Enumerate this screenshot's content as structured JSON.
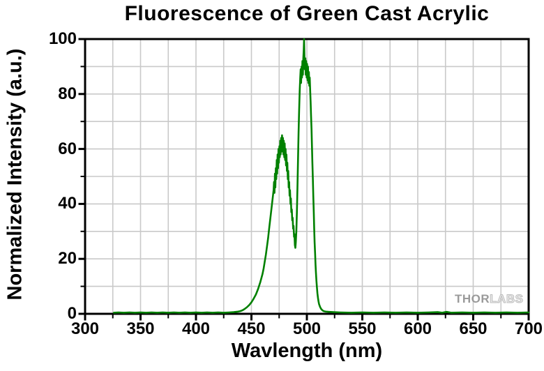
{
  "figure": {
    "watermark": {
      "thor": "THOR",
      "labs": "LABS"
    }
  },
  "chart_data": {
    "type": "line",
    "title": "Fluorescence of Green Cast Acrylic",
    "xlabel": "Wavlength (nm)",
    "ylabel": "Normalized Intensity (a.u.)",
    "xlim": [
      300,
      700
    ],
    "ylim": [
      0,
      100
    ],
    "x_major_ticks": [
      300,
      350,
      400,
      450,
      500,
      550,
      600,
      650,
      700
    ],
    "x_minor_ticks": [
      325,
      375,
      425,
      475,
      525,
      575,
      625,
      675
    ],
    "y_major_ticks": [
      0,
      20,
      40,
      60,
      80,
      100
    ],
    "y_minor_ticks": [
      10,
      30,
      50,
      70,
      90
    ],
    "grid": {
      "show": true,
      "x_gridlines": [
        325,
        350,
        375,
        400,
        425,
        450,
        475,
        500,
        525,
        550,
        575,
        600,
        625,
        650,
        675
      ],
      "y_gridlines": [
        10,
        20,
        30,
        40,
        50,
        60,
        70,
        80,
        90
      ],
      "color": "#c9c9c9"
    },
    "frame_color": "#000000",
    "line_color": "#008000",
    "legend": {
      "show": false
    },
    "annotations": [
      "THORLABS watermark bottom-right"
    ],
    "series": [
      {
        "name": "Green Cast Acrylic fluorescence",
        "peak1": {
          "wavelength_nm": 478,
          "intensity": 65
        },
        "valley": {
          "wavelength_nm": 489.5,
          "intensity": 24
        },
        "peak2": {
          "wavelength_nm": 497.5,
          "intensity": 100
        },
        "points": [
          [
            326,
            0.4
          ],
          [
            330,
            0.5
          ],
          [
            335,
            0.4
          ],
          [
            340,
            0.5
          ],
          [
            345,
            0.4
          ],
          [
            350,
            0.5
          ],
          [
            355,
            0.4
          ],
          [
            360,
            0.5
          ],
          [
            365,
            0.4
          ],
          [
            370,
            0.5
          ],
          [
            375,
            0.4
          ],
          [
            380,
            0.5
          ],
          [
            385,
            0.4
          ],
          [
            390,
            0.5
          ],
          [
            395,
            0.4
          ],
          [
            400,
            0.5
          ],
          [
            405,
            0.4
          ],
          [
            410,
            0.5
          ],
          [
            415,
            0.4
          ],
          [
            420,
            0.5
          ],
          [
            425,
            0.4
          ],
          [
            430,
            0.5
          ],
          [
            434,
            0.6
          ],
          [
            438,
            0.8
          ],
          [
            440,
            1
          ],
          [
            442,
            1.3
          ],
          [
            444,
            1.8
          ],
          [
            446,
            2.4
          ],
          [
            448,
            3.2
          ],
          [
            450,
            4.2
          ],
          [
            452,
            5.5
          ],
          [
            454,
            7
          ],
          [
            456,
            9
          ],
          [
            458,
            11.5
          ],
          [
            460,
            14.5
          ],
          [
            461,
            16.5
          ],
          [
            462,
            19
          ],
          [
            463,
            21.5
          ],
          [
            464,
            24.5
          ],
          [
            465,
            27.5
          ],
          [
            466,
            31
          ],
          [
            467,
            34.5
          ],
          [
            468,
            38
          ],
          [
            469,
            41.5
          ],
          [
            470,
            45
          ],
          [
            470.4,
            48
          ],
          [
            470.8,
            44
          ],
          [
            471.2,
            51
          ],
          [
            471.6,
            46
          ],
          [
            472,
            53
          ],
          [
            472.4,
            49
          ],
          [
            472.8,
            56
          ],
          [
            473.2,
            51
          ],
          [
            473.6,
            58
          ],
          [
            474,
            53
          ],
          [
            474.4,
            60
          ],
          [
            474.8,
            55
          ],
          [
            475.2,
            61
          ],
          [
            475.6,
            57
          ],
          [
            476,
            63
          ],
          [
            476.4,
            58
          ],
          [
            476.8,
            64
          ],
          [
            477.2,
            59
          ],
          [
            477.6,
            65
          ],
          [
            478,
            60
          ],
          [
            478.4,
            64
          ],
          [
            478.8,
            58
          ],
          [
            479.2,
            63
          ],
          [
            479.6,
            57
          ],
          [
            480,
            62
          ],
          [
            480.4,
            56
          ],
          [
            480.8,
            60
          ],
          [
            481.2,
            54
          ],
          [
            481.6,
            58
          ],
          [
            482,
            52
          ],
          [
            482.4,
            55
          ],
          [
            482.8,
            49
          ],
          [
            483.2,
            52
          ],
          [
            483.6,
            46
          ],
          [
            484,
            48
          ],
          [
            484.4,
            43
          ],
          [
            484.8,
            45
          ],
          [
            485.2,
            40
          ],
          [
            485.6,
            42
          ],
          [
            486,
            37
          ],
          [
            486.4,
            38
          ],
          [
            486.8,
            34
          ],
          [
            487.2,
            35
          ],
          [
            487.6,
            31
          ],
          [
            488,
            32
          ],
          [
            488.4,
            28
          ],
          [
            488.8,
            29
          ],
          [
            489.2,
            25
          ],
          [
            489.6,
            24
          ],
          [
            490,
            26
          ],
          [
            490.5,
            30
          ],
          [
            491,
            37
          ],
          [
            491.5,
            46
          ],
          [
            492,
            56
          ],
          [
            492.5,
            66
          ],
          [
            493,
            74
          ],
          [
            493.5,
            81
          ],
          [
            494,
            86
          ],
          [
            494.4,
            89
          ],
          [
            494.8,
            84
          ],
          [
            495.2,
            90
          ],
          [
            495.6,
            86
          ],
          [
            496,
            92
          ],
          [
            496.4,
            87
          ],
          [
            496.8,
            93
          ],
          [
            497.2,
            96
          ],
          [
            497.5,
            100
          ],
          [
            497.8,
            94
          ],
          [
            498.2,
            89
          ],
          [
            498.6,
            93
          ],
          [
            499,
            87
          ],
          [
            499.4,
            92
          ],
          [
            499.8,
            86
          ],
          [
            500.2,
            91
          ],
          [
            500.6,
            85
          ],
          [
            501,
            90
          ],
          [
            501.4,
            84
          ],
          [
            501.8,
            88
          ],
          [
            502.2,
            83
          ],
          [
            502.6,
            86
          ],
          [
            503,
            81
          ],
          [
            503.4,
            77
          ],
          [
            503.8,
            72
          ],
          [
            504.2,
            67
          ],
          [
            504.6,
            61
          ],
          [
            505,
            55
          ],
          [
            505.4,
            49
          ],
          [
            505.8,
            43
          ],
          [
            506.2,
            37
          ],
          [
            506.6,
            31
          ],
          [
            507,
            26
          ],
          [
            507.4,
            22
          ],
          [
            507.8,
            18
          ],
          [
            508.2,
            15
          ],
          [
            508.6,
            12
          ],
          [
            509,
            10
          ],
          [
            509.5,
            7.5
          ],
          [
            510,
            5.8
          ],
          [
            510.5,
            4.5
          ],
          [
            511,
            3.5
          ],
          [
            512,
            2.4
          ],
          [
            513,
            1.7
          ],
          [
            514,
            1.3
          ],
          [
            515,
            1
          ],
          [
            517,
            0.8
          ],
          [
            520,
            0.7
          ],
          [
            524,
            0.6
          ],
          [
            530,
            0.5
          ],
          [
            540,
            0.4
          ],
          [
            550,
            0.5
          ],
          [
            560,
            0.4
          ],
          [
            570,
            0.5
          ],
          [
            580,
            0.4
          ],
          [
            590,
            0.5
          ],
          [
            600,
            0.4
          ],
          [
            610,
            0.5
          ],
          [
            618,
            0.6
          ],
          [
            622,
            0.4
          ],
          [
            626,
            0.7
          ],
          [
            630,
            0.4
          ],
          [
            640,
            0.5
          ],
          [
            650,
            0.4
          ],
          [
            660,
            0.5
          ],
          [
            670,
            0.4
          ],
          [
            680,
            0.5
          ],
          [
            690,
            0.4
          ],
          [
            700,
            0.5
          ]
        ]
      }
    ]
  }
}
